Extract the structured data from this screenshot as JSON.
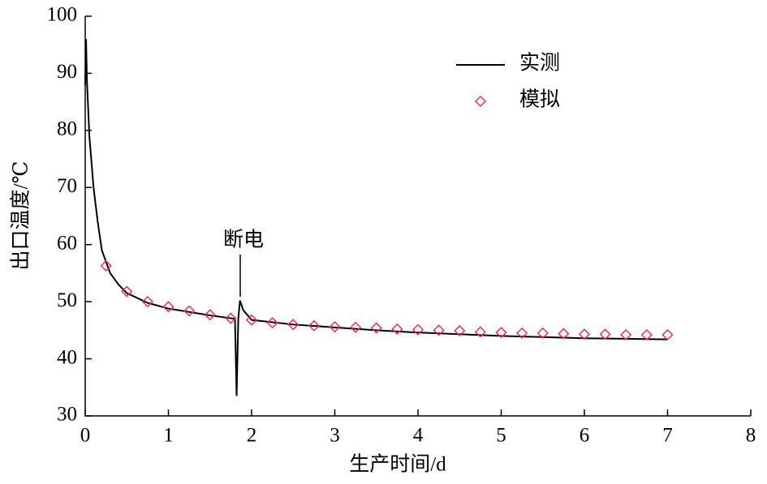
{
  "chart_data": {
    "type": "line",
    "xlabel": "生产时间/d",
    "ylabel": "出口温度/℃",
    "annotation": "断电",
    "xlim": [
      0,
      8
    ],
    "xticks": [
      0,
      1,
      2,
      3,
      4,
      5,
      6,
      7,
      8
    ],
    "ylim": [
      30,
      100
    ],
    "yticks": [
      30,
      40,
      50,
      60,
      70,
      80,
      90,
      100
    ],
    "legend": "upper right",
    "series": [
      {
        "name": "实测",
        "color": "#000000",
        "style": "line",
        "x": [
          0,
          0.01,
          0.02,
          0.05,
          0.1,
          0.15,
          0.2,
          0.3,
          0.4,
          0.5,
          0.75,
          1,
          1.25,
          1.5,
          1.75,
          1.8,
          1.82,
          1.84,
          1.86,
          1.9,
          2,
          2.5,
          3,
          3.5,
          4,
          4.5,
          5,
          5.5,
          6,
          6.5,
          7
        ],
        "values": [
          88,
          96,
          89,
          79,
          70,
          64,
          59,
          55,
          53,
          51.5,
          49.8,
          48.8,
          48.2,
          47.6,
          47.1,
          47,
          33.5,
          47,
          50.2,
          48.5,
          46.8,
          46,
          45.5,
          45,
          44.6,
          44.3,
          44,
          43.8,
          43.6,
          43.5,
          43.4
        ]
      },
      {
        "name": "模拟",
        "color": "#e8305a",
        "style": "marker",
        "x": [
          0.25,
          0.5,
          0.75,
          1,
          1.25,
          1.5,
          1.75,
          2,
          2.25,
          2.5,
          2.75,
          3,
          3.25,
          3.5,
          3.75,
          4,
          4.25,
          4.5,
          4.75,
          5,
          5.25,
          5.5,
          5.75,
          6,
          6.25,
          6.5,
          6.75,
          7
        ],
        "values": [
          56.3,
          51.8,
          50.0,
          49.1,
          48.4,
          47.7,
          47.1,
          46.8,
          46.3,
          46.0,
          45.8,
          45.6,
          45.5,
          45.4,
          45.2,
          45.1,
          45.0,
          44.9,
          44.7,
          44.6,
          44.5,
          44.5,
          44.4,
          44.3,
          44.3,
          44.2,
          44.2,
          44.2
        ]
      }
    ]
  }
}
